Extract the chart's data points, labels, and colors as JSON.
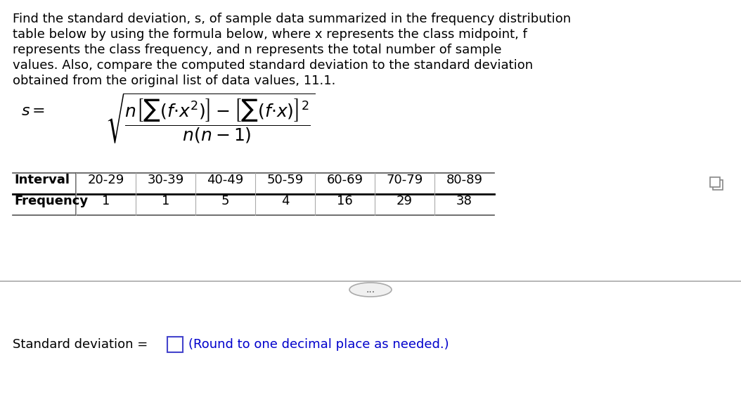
{
  "bg_color": "#ffffff",
  "text_color": "#000000",
  "blue_color": "#0000ff",
  "paragraph": "Find the standard deviation, s, of sample data summarized in the frequency distribution\ntable below by using the formula below, where x represents the class midpoint, f\nrepresents the class frequency, and n represents the total number of sample\nvalues. Also, compare the computed standard deviation to the standard deviation\nobtained from the original list of data values, 11.1.",
  "intervals": [
    "20-29",
    "30-39",
    "40-49",
    "50-59",
    "60-69",
    "70-79",
    "80-89"
  ],
  "frequencies": [
    "1",
    "1",
    "5",
    "4",
    "16",
    "29",
    "38"
  ],
  "bottom_text_black": "Standard deviation = ",
  "bottom_text_blue": "(Round to one decimal place as needed.)",
  "formula_label": "s = ",
  "dots_text": "...",
  "title_fontsize": 14,
  "body_fontsize": 13,
  "table_fontsize": 13
}
